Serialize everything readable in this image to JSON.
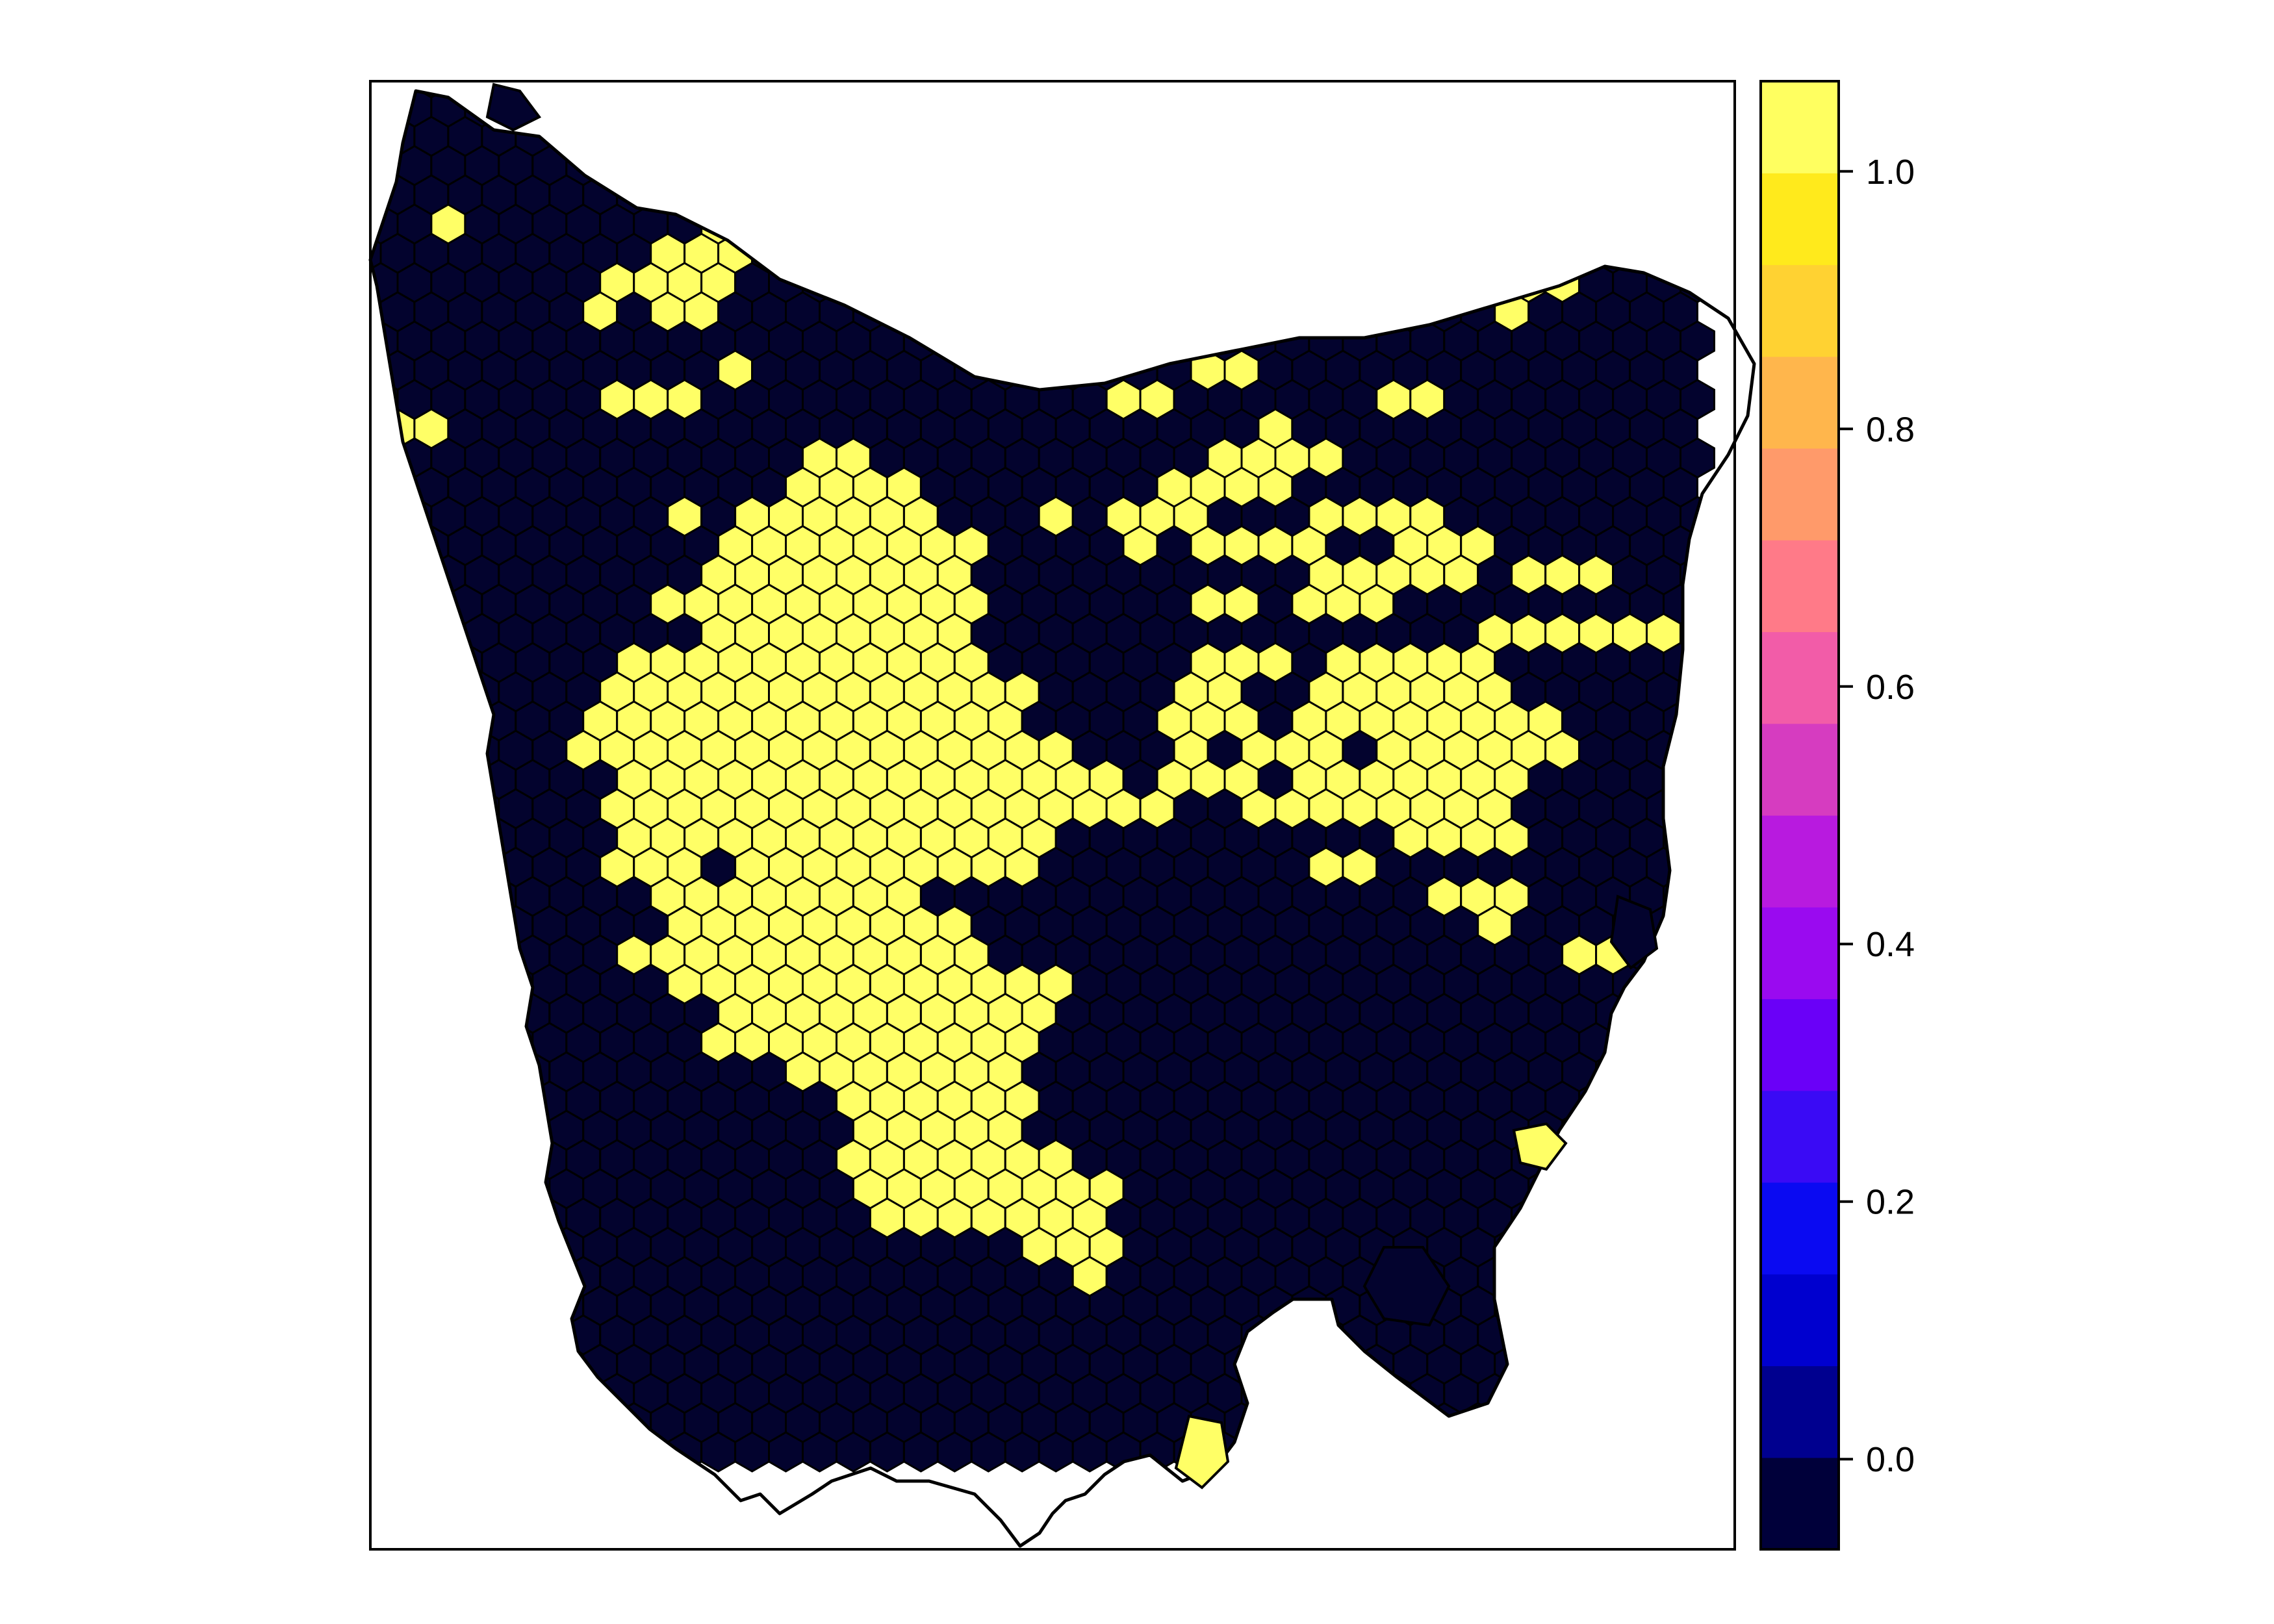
{
  "chart_data": {
    "type": "heatmap",
    "title": "",
    "legend_placement": "right",
    "scale": {
      "min": -0.07,
      "max": 1.07,
      "ticks": [
        {
          "value": 0.0,
          "label": "0.0"
        },
        {
          "value": 0.2,
          "label": "0.2"
        },
        {
          "value": 0.4,
          "label": "0.4"
        },
        {
          "value": 0.6,
          "label": "0.6"
        },
        {
          "value": 0.8,
          "label": "0.8"
        },
        {
          "value": 1.0,
          "label": "1.0"
        }
      ],
      "colors": [
        "#00003A",
        "#00008F",
        "#0000CF",
        "#0A0AF2",
        "#3A0AF5",
        "#6A00F8",
        "#9A0AF0",
        "#B81ADF",
        "#D63CC0",
        "#F25CA8",
        "#FF7A88",
        "#FF9A6A",
        "#FFB64C",
        "#FFD232",
        "#FFEA1C",
        "#FFFF60"
      ]
    },
    "colors": {
      "absent": "#03032E",
      "present": "#FFFF66",
      "partial": "#FFC83A"
    },
    "hex_cells_occupancy": [
      "..............................",
      "..............................",
      "..............................",
      "..............................",
      "..............................",
      "..#.....#.........#...........",
      ".......##.........#.......#...",
      "......###.........#.......#...",
      ".....#.#.................#....",
      "..............................",
      "........#..........#..........",
      "......##.........#.....#......",
      ".#..................#.........",
      "..........##.......###........",
      "..........###.....###.........",
      ".......#.####..#.##..###......",
      "........######...#.###.##.....",
      "........######.......####.##..",
      ".......#######.....#.##.......",
      "........######...........#####",
      "......########.....##.###.....",
      "......#########...##.#####....",
      ".....##########...##.######...",
      ".....###########..#.##.####...",
      "......###########.##.#####....",
      "......############..######....",
      "......##########.......###....",
      "......##.######......##.......",
      ".......######...........##....",
      ".......#######...........#....",
      "......########.............#..",
      ".......#########..............",
      "........########..............",
      "........#######...............",
      "..........#####...............",
      "...........####...............",
      "...........####...............",
      "...........#####..............",
      "...........######.............",
      "............#####.............",
      "...............##.............",
      "................#.............",
      "..............................",
      "..............................",
      ".............................."
    ]
  },
  "legend": {
    "labels": [
      "0.0",
      "0.2",
      "0.4",
      "0.6",
      "0.8",
      "1.0"
    ]
  }
}
